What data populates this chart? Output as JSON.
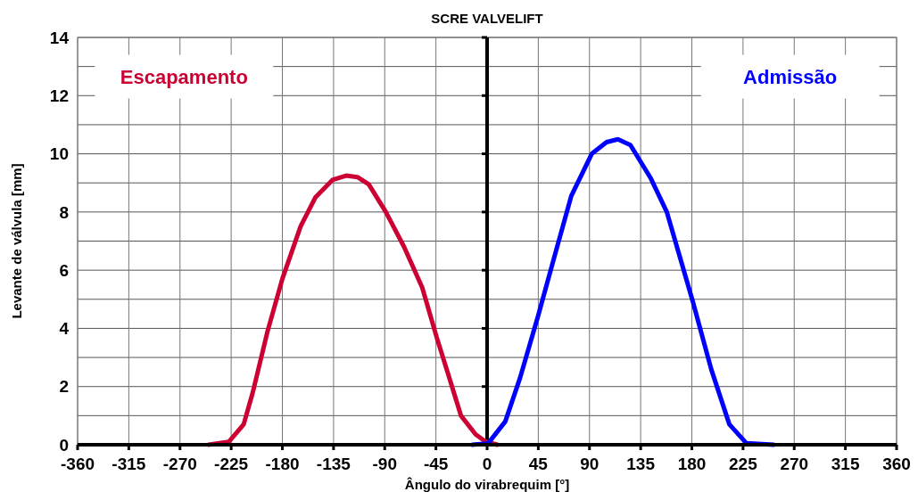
{
  "chart_data": {
    "type": "line",
    "title": "SCRE VALVELIFT",
    "xlabel": "Ângulo do virabrequim [°]",
    "ylabel": "Levante de válvula  [mm]",
    "xlim": [
      -360,
      360
    ],
    "xticks": [
      -360,
      -315,
      -270,
      -225,
      -180,
      -135,
      -90,
      -45,
      0,
      45,
      90,
      135,
      180,
      225,
      270,
      315,
      360
    ],
    "ylim": [
      0,
      14
    ],
    "yticks": [
      0,
      {
        "value": 1,
        "label": null
      },
      2,
      {
        "value": 3,
        "label": null
      },
      4,
      {
        "value": 5,
        "label": null
      },
      6,
      {
        "value": 7,
        "label": null
      },
      8,
      {
        "value": 9,
        "label": null
      },
      10,
      {
        "value": 11,
        "label": null
      },
      12,
      {
        "value": 13,
        "label": null
      },
      14
    ],
    "grid": true,
    "line_style": "solid",
    "marker": "none",
    "series": [
      {
        "name": "Escapamento",
        "color": "#cc0033",
        "x": [
          -245,
          -227,
          -214,
          -206,
          -193,
          -180,
          -164,
          -151,
          -136,
          -124,
          -114,
          -104,
          -89,
          -73,
          -57,
          -44,
          -34,
          -23,
          -10,
          -1,
          9
        ],
        "values": [
          0,
          0.1,
          0.7,
          1.8,
          3.9,
          5.7,
          7.5,
          8.5,
          9.1,
          9.25,
          9.2,
          8.95,
          8.0,
          6.8,
          5.4,
          3.65,
          2.4,
          1.0,
          0.35,
          0.1,
          0
        ]
      },
      {
        "name": "Admissão",
        "color": "#0000ff",
        "x": [
          -13,
          1,
          16,
          29,
          45,
          58,
          74,
          92,
          105,
          115,
          126,
          144,
          158,
          181,
          197,
          213,
          228,
          252
        ],
        "values": [
          0,
          0.05,
          0.8,
          2.3,
          4.45,
          6.3,
          8.55,
          10.0,
          10.4,
          10.5,
          10.3,
          9.15,
          8.0,
          4.9,
          2.6,
          0.7,
          0.05,
          0
        ]
      }
    ]
  }
}
